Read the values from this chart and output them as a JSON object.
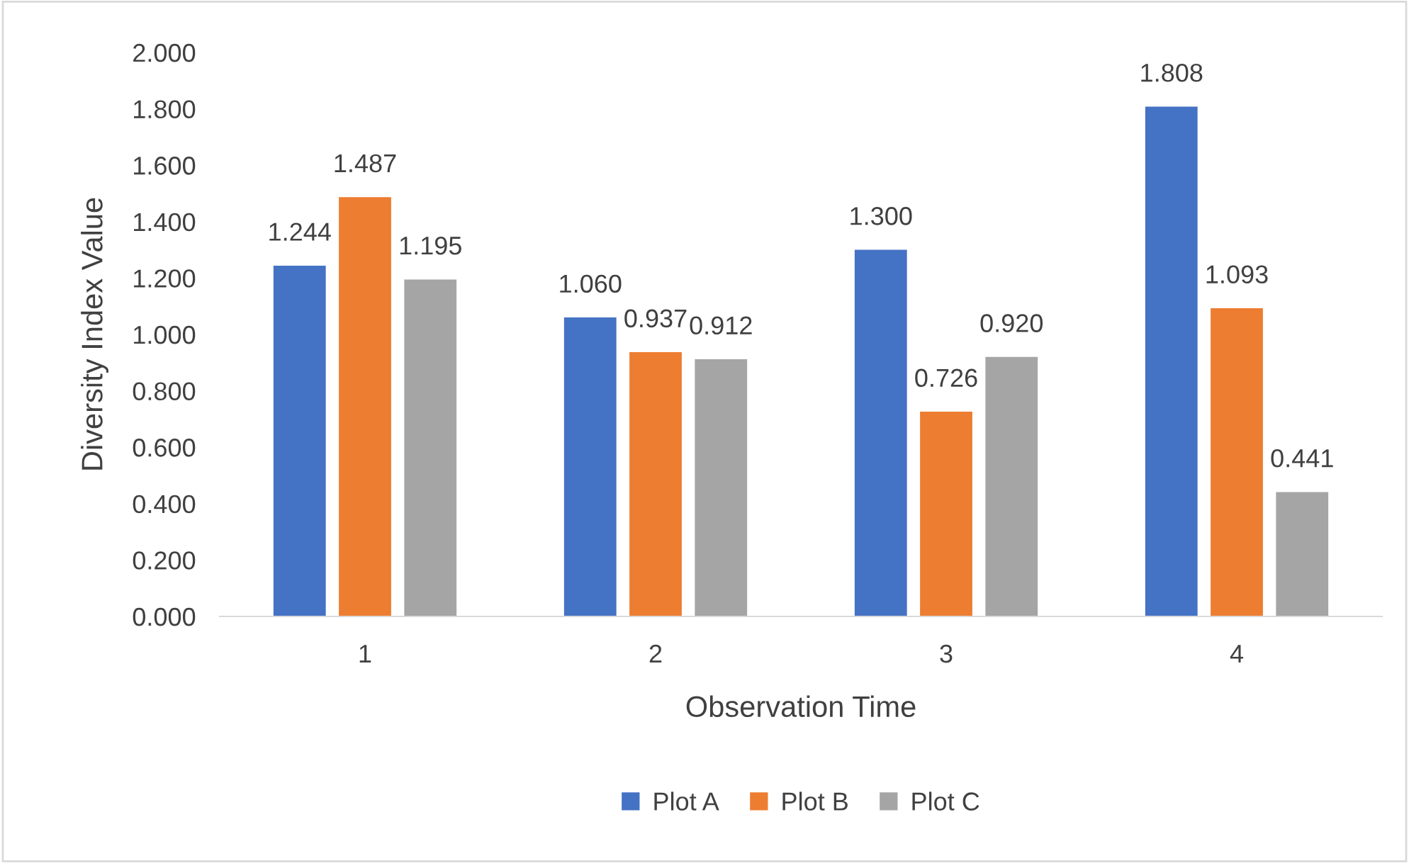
{
  "chart_data": {
    "type": "bar",
    "xlabel": "Observation Time",
    "ylabel": "Diversity Index Value",
    "categories": [
      "1",
      "2",
      "3",
      "4"
    ],
    "series": [
      {
        "name": "Plot A",
        "color": "#4472c4",
        "values": [
          1.244,
          1.06,
          1.3,
          1.808
        ],
        "value_labels": [
          "1.244",
          "1.060",
          "1.300",
          "1.808"
        ]
      },
      {
        "name": "Plot B",
        "color": "#ed7d31",
        "values": [
          1.487,
          0.937,
          0.726,
          1.093
        ],
        "value_labels": [
          "1.487",
          "0.937",
          "0.726",
          "1.093"
        ]
      },
      {
        "name": "Plot C",
        "color": "#a5a5a5",
        "values": [
          1.195,
          0.912,
          0.92,
          0.441
        ],
        "value_labels": [
          "1.195",
          "0.912",
          "0.920",
          "0.441"
        ]
      }
    ],
    "ylim": [
      0,
      2
    ],
    "yticks": [
      {
        "value": 0,
        "label": "0.000"
      },
      {
        "value": 0.2,
        "label": "0.200"
      },
      {
        "value": 0.4,
        "label": "0.400"
      },
      {
        "value": 0.6,
        "label": "0.600"
      },
      {
        "value": 0.8,
        "label": "0.800"
      },
      {
        "value": 1.0,
        "label": "1.000"
      },
      {
        "value": 1.2,
        "label": "1.200"
      },
      {
        "value": 1.4,
        "label": "1.400"
      },
      {
        "value": 1.6,
        "label": "1.600"
      },
      {
        "value": 1.8,
        "label": "1.800"
      },
      {
        "value": 2.0,
        "label": "2.000"
      }
    ],
    "grid": false,
    "legend": "bottom"
  }
}
